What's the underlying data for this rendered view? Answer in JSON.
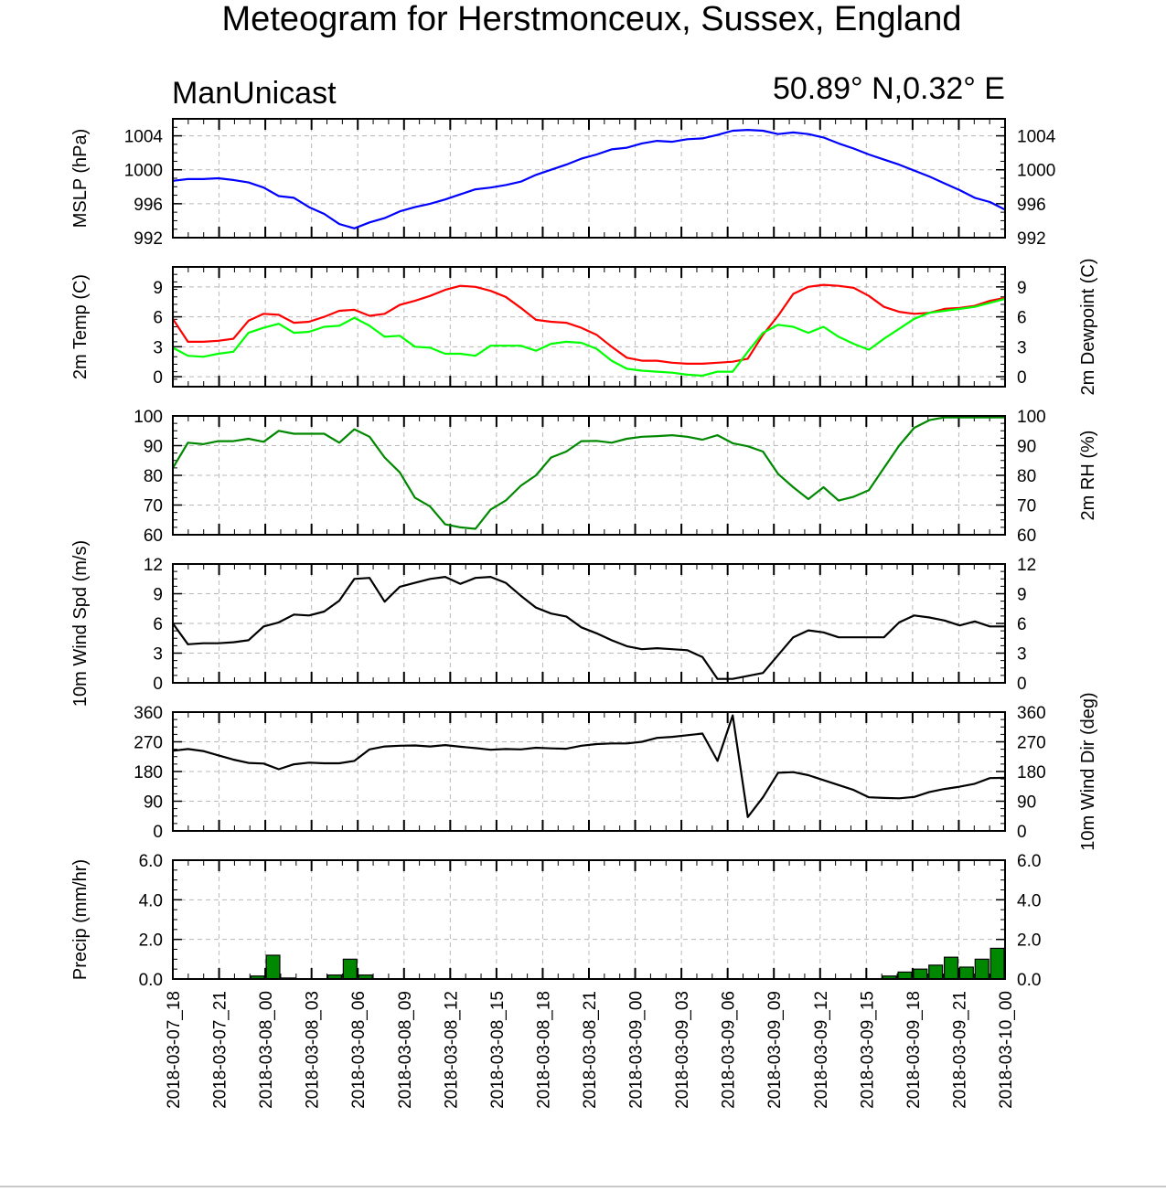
{
  "title": "Meteogram for Herstmonceux, Sussex, England",
  "model_label": "ManUnicast",
  "location_label": "50.89° N,0.32° E",
  "time_labels": [
    "2018-03-07_18",
    "2018-03-07_21",
    "2018-03-08_00",
    "2018-03-08_03",
    "2018-03-08_06",
    "2018-03-08_09",
    "2018-03-08_12",
    "2018-03-08_15",
    "2018-03-08_18",
    "2018-03-08_21",
    "2018-03-09_00",
    "2018-03-09_03",
    "2018-03-09_06",
    "2018-03-09_09",
    "2018-03-09_12",
    "2018-03-09_15",
    "2018-03-09_18",
    "2018-03-09_21",
    "2018-03-10_00"
  ],
  "chart_data": [
    {
      "type": "line",
      "ylabel": "MSLP (hPa)",
      "ylim": [
        992,
        1006
      ],
      "y_ticks": [
        992,
        996,
        1000,
        1004
      ],
      "series": [
        {
          "color": "#0000ff",
          "values": [
            998.7,
            998.9,
            998.9,
            999.0,
            998.8,
            998.5,
            997.9,
            996.9,
            996.7,
            995.6,
            994.8,
            993.6,
            993.1,
            993.8,
            994.3,
            995.1,
            995.6,
            996.0,
            996.5,
            997.1,
            997.7,
            997.9,
            998.2,
            998.6,
            999.4,
            1000.0,
            1000.6,
            1001.3,
            1001.8,
            1002.4,
            1002.6,
            1003.1,
            1003.4,
            1003.3,
            1003.6,
            1003.7,
            1004.1,
            1004.6,
            1004.7,
            1004.6,
            1004.2,
            1004.4,
            1004.2,
            1003.8,
            1003.1,
            1002.5,
            1001.8,
            1001.2,
            1000.6,
            999.9,
            999.2,
            998.4,
            997.6,
            996.7,
            996.2,
            995.3
          ]
        }
      ]
    },
    {
      "type": "line",
      "ylabel": "2m Temp (C)",
      "ylabel_right": "2m Dewpoint (C)",
      "ylim": [
        -1,
        11
      ],
      "y_ticks": [
        0,
        3,
        6,
        9
      ],
      "series": [
        {
          "color": "#ff0000",
          "values": [
            5.8,
            3.5,
            3.5,
            3.6,
            3.8,
            5.6,
            6.3,
            6.2,
            5.4,
            5.5,
            6.0,
            6.6,
            6.7,
            6.1,
            6.3,
            7.2,
            7.6,
            8.1,
            8.7,
            9.1,
            9.0,
            8.6,
            8.0,
            6.9,
            5.7,
            5.5,
            5.4,
            4.9,
            4.2,
            3.0,
            1.9,
            1.6,
            1.6,
            1.4,
            1.3,
            1.3,
            1.4,
            1.5,
            1.8,
            4.2,
            6.1,
            8.3,
            9.0,
            9.2,
            9.1,
            8.9,
            8.1,
            7.0,
            6.5,
            6.3,
            6.4,
            6.8,
            6.9,
            7.1,
            7.6,
            7.9
          ]
        },
        {
          "color": "#00ff00",
          "values": [
            2.9,
            2.1,
            2.0,
            2.3,
            2.5,
            4.4,
            4.9,
            5.3,
            4.4,
            4.5,
            5.0,
            5.1,
            5.9,
            5.1,
            4.0,
            4.1,
            3.0,
            2.9,
            2.3,
            2.3,
            2.1,
            3.1,
            3.1,
            3.1,
            2.6,
            3.3,
            3.5,
            3.4,
            2.8,
            1.6,
            0.8,
            0.6,
            0.5,
            0.4,
            0.2,
            0.1,
            0.5,
            0.5,
            2.5,
            4.4,
            5.2,
            5.0,
            4.4,
            5.0,
            4.0,
            3.3,
            2.7,
            3.8,
            4.8,
            5.8,
            6.4,
            6.6,
            6.8,
            7.0,
            7.4,
            7.8
          ]
        }
      ]
    },
    {
      "type": "line",
      "ylabel": "2m RH (%)",
      "ylim": [
        60,
        100
      ],
      "y_ticks": [
        60,
        70,
        80,
        90,
        100
      ],
      "series": [
        {
          "color": "#008800",
          "values": [
            82.5,
            91.0,
            90.5,
            91.5,
            91.5,
            92.3,
            91.3,
            95.0,
            94.0,
            94.0,
            94.0,
            91.0,
            95.5,
            93.0,
            86.0,
            81.0,
            72.5,
            69.5,
            63.5,
            62.5,
            62.0,
            68.5,
            71.5,
            76.5,
            80.0,
            86.0,
            88.0,
            91.5,
            91.6,
            91.0,
            92.3,
            93.0,
            93.2,
            93.5,
            93.0,
            92.0,
            93.5,
            90.8,
            89.8,
            88.0,
            80.5,
            76.0,
            72.0,
            76.0,
            71.5,
            72.8,
            75.0,
            82.5,
            90.0,
            96.0,
            98.6,
            99.5,
            99.5,
            99.5,
            99.5,
            99.5
          ]
        }
      ]
    },
    {
      "type": "line",
      "ylabel": "10m Wind Spd (m/s)",
      "ylim": [
        0,
        12
      ],
      "y_ticks": [
        0,
        3,
        6,
        9,
        12
      ],
      "series": [
        {
          "color": "#000000",
          "values": [
            6.0,
            3.9,
            4.0,
            4.0,
            4.1,
            4.3,
            5.7,
            6.1,
            6.9,
            6.8,
            7.2,
            8.3,
            10.5,
            10.6,
            8.2,
            9.7,
            10.1,
            10.5,
            10.7,
            10.0,
            10.6,
            10.7,
            10.1,
            8.8,
            7.6,
            7.0,
            6.7,
            5.6,
            5.0,
            4.3,
            3.7,
            3.4,
            3.5,
            3.4,
            3.3,
            2.6,
            0.4,
            0.4,
            0.7,
            1.0,
            2.8,
            4.6,
            5.3,
            5.1,
            4.6,
            4.6,
            4.6,
            4.6,
            6.1,
            6.8,
            6.6,
            6.3,
            5.8,
            6.2,
            5.7,
            5.7
          ]
        }
      ]
    },
    {
      "type": "line",
      "ylabel": "10m Wind Dir (deg)",
      "ylim": [
        0,
        360
      ],
      "y_ticks": [
        0,
        90,
        180,
        270,
        360
      ],
      "series": [
        {
          "color": "#000000",
          "values": [
            243,
            248,
            242,
            229,
            216,
            206,
            204,
            187,
            202,
            207,
            205,
            205,
            212,
            247,
            256,
            258,
            259,
            256,
            260,
            255,
            251,
            246,
            248,
            247,
            252,
            250,
            249,
            258,
            263,
            265,
            265,
            270,
            282,
            285,
            290,
            295,
            212,
            350,
            42,
            102,
            176,
            178,
            169,
            154,
            139,
            124,
            102,
            100,
            99,
            103,
            118,
            127,
            134,
            143,
            160,
            161
          ]
        }
      ]
    },
    {
      "type": "bar",
      "ylabel": "Precip (mm/hr)",
      "ylim": [
        0,
        6
      ],
      "y_ticks": [
        0,
        2,
        4,
        6
      ],
      "y_tick_labels": [
        "0.0",
        "2.0",
        "4.0",
        "6.0"
      ],
      "color": "#008800",
      "values": [
        0,
        0,
        0,
        0,
        0,
        0.15,
        1.2,
        0.05,
        0,
        0,
        0.2,
        1.0,
        0.2,
        0,
        0,
        0,
        0,
        0,
        0,
        0,
        0,
        0,
        0,
        0,
        0,
        0,
        0,
        0,
        0,
        0,
        0,
        0,
        0,
        0,
        0,
        0,
        0,
        0,
        0,
        0,
        0,
        0,
        0,
        0,
        0,
        0,
        0.15,
        0.35,
        0.5,
        0.7,
        1.1,
        0.6,
        1.0,
        1.55
      ]
    }
  ]
}
